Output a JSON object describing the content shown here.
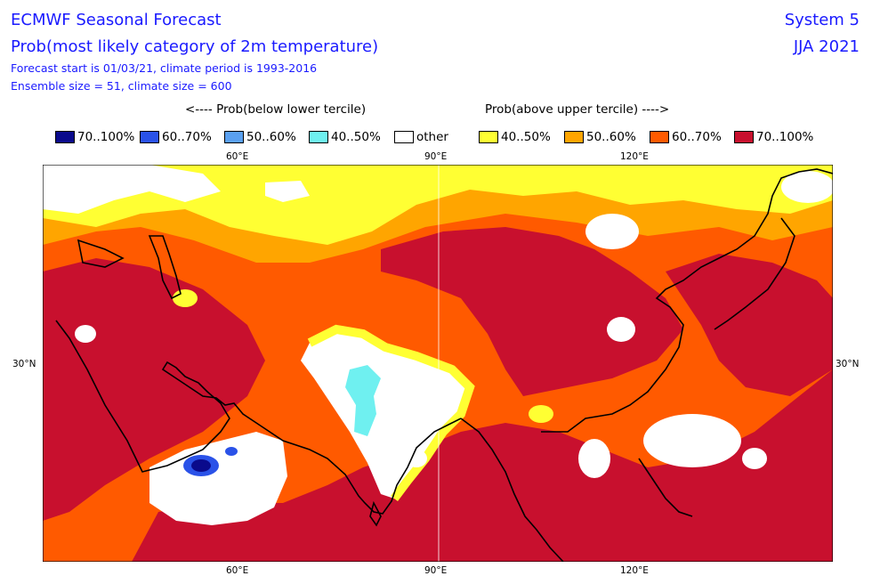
{
  "header": {
    "title": "ECMWF Seasonal Forecast",
    "subtitle": "Prob(most likely category of 2m temperature)",
    "forecast_line": "Forecast start is 01/03/21, climate period is 1993-2016",
    "ensemble_line": "Ensemble size = 51, climate size = 600",
    "system": "System 5",
    "season": "JJA 2021"
  },
  "legend": {
    "below_title": "<---- Prob(below lower tercile)",
    "above_title": "Prob(above upper tercile) ---->",
    "items": [
      {
        "label": "70..100%",
        "color": "#0a0a8c"
      },
      {
        "label": "60..70%",
        "color": "#2a52e8"
      },
      {
        "label": "50..60%",
        "color": "#5aa0f0"
      },
      {
        "label": "40..50%",
        "color": "#6ff0f0"
      },
      {
        "label": "other",
        "color": "#ffffff"
      },
      {
        "label": "40..50%",
        "color": "#ffff33"
      },
      {
        "label": "50..60%",
        "color": "#ffa500"
      },
      {
        "label": "60..70%",
        "color": "#ff5a00"
      },
      {
        "label": "70..100%",
        "color": "#c8102e"
      }
    ]
  },
  "axes": {
    "top_ticks": [
      "60°E",
      "90°E",
      "120°E"
    ],
    "bottom_ticks": [
      "60°E",
      "90°E",
      "120°E"
    ],
    "left_tick": "30°N",
    "right_tick": "30°N"
  }
}
